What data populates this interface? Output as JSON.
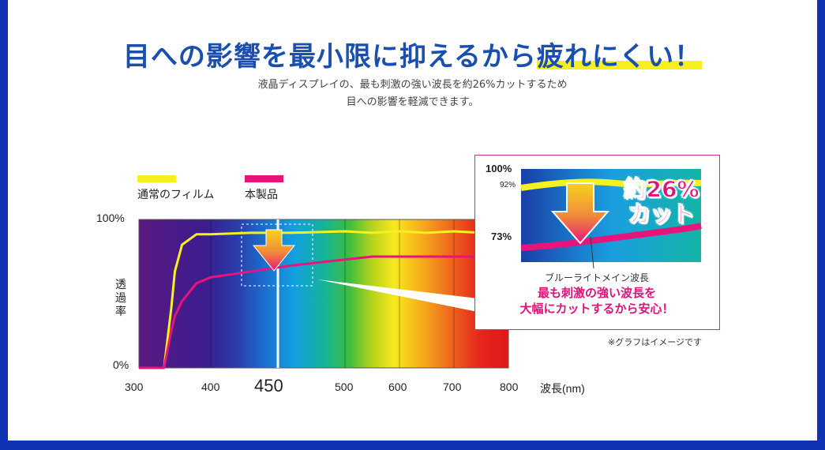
{
  "header": {
    "title_part1": "目への影響を最小限に抑えるから",
    "title_highlight": "疲れにくい！",
    "subtitle_line1": "液晶ディスプレイの、最も刺激の強い波長を約26%カットするため",
    "subtitle_line2": "目への影響を軽減できます。"
  },
  "legend": {
    "items": [
      {
        "label": "通常のフィルム",
        "color": "#f5f01e"
      },
      {
        "label": "本製品",
        "color": "#e8147c"
      }
    ]
  },
  "axis": {
    "y_top": "100%",
    "y_bottom": "0%",
    "y_label": "透過率",
    "x_ticks": [
      "300",
      "400",
      "450",
      "500",
      "600",
      "700",
      "800"
    ],
    "x_unit": "波長(nm)"
  },
  "inset": {
    "label_100": "100%",
    "label_92": "92%",
    "label_73": "73%",
    "cut_line1": "約26%",
    "cut_line2": "カット",
    "marker_label": "ブルーライトメイン波長",
    "message_line1": "最も刺激の強い波長を",
    "message_line2": "大幅にカットするから安心！"
  },
  "note": "※グラフはイメージです",
  "colors": {
    "title": "#1a4fb0",
    "normal_film": "#f5f01e",
    "product": "#e8147c",
    "frame": "#1032b3",
    "message": "#e0127a"
  },
  "chart_data": {
    "type": "line",
    "xlabel": "波長(nm)",
    "ylabel": "透過率",
    "xlim": [
      300,
      800
    ],
    "ylim": [
      0,
      100
    ],
    "highlight_x": 450,
    "series": [
      {
        "name": "通常のフィルム",
        "x": [
          300,
          320,
          335,
          345,
          350,
          360,
          380,
          400,
          430,
          460,
          500,
          550,
          600,
          650,
          700,
          750,
          800
        ],
        "y": [
          0,
          0,
          0,
          40,
          65,
          83,
          90,
          90,
          91,
          91,
          92,
          91,
          92,
          91,
          92,
          91,
          92
        ]
      },
      {
        "name": "本製品",
        "x": [
          300,
          320,
          335,
          345,
          350,
          360,
          380,
          400,
          430,
          460,
          500,
          550,
          600,
          650,
          700,
          750,
          800
        ],
        "y": [
          0,
          0,
          0,
          25,
          35,
          45,
          57,
          61,
          65,
          69,
          73,
          75,
          75,
          75,
          75,
          75,
          75
        ]
      }
    ]
  }
}
